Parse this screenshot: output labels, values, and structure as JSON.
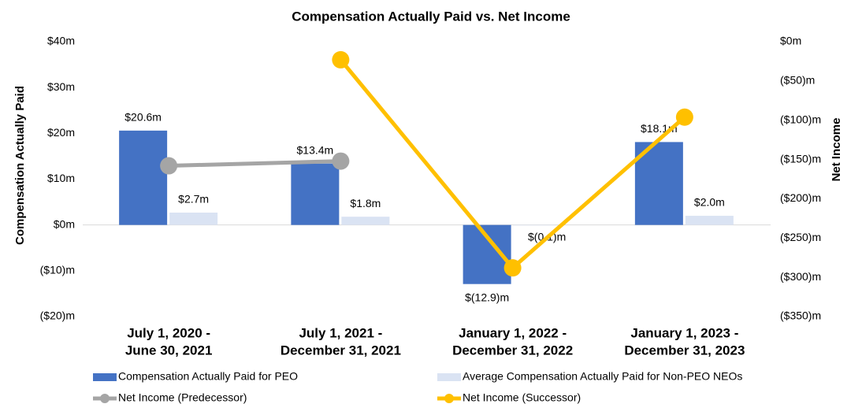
{
  "chart_data": {
    "type": "bar",
    "title": "Compensation Actually Paid vs. Net Income",
    "y_label": "Compensation Actually Paid",
    "y2_label": "Net Income",
    "categories": [
      [
        "July 1, 2020 -",
        "June 30, 2021"
      ],
      [
        "July 1, 2021 -",
        "December 31, 2021"
      ],
      [
        "January 1, 2022 -",
        "December 31, 2022"
      ],
      [
        "January 1, 2023 -",
        "December 31, 2023"
      ]
    ],
    "series": [
      {
        "name": "Compensation Actually Paid for PEO",
        "type": "bar",
        "color": "#4472c4",
        "values": [
          20.6,
          13.4,
          -12.9,
          18.1
        ],
        "value_labels": [
          "$20.6m",
          "$13.4m",
          "$(12.9)m",
          "$18.1m"
        ]
      },
      {
        "name": "Average Compensation Actually Paid for Non-PEO NEOs",
        "type": "bar",
        "color": "#dae3f3",
        "values": [
          2.7,
          1.8,
          -0.1,
          2.0
        ],
        "value_labels": [
          "$2.7m",
          "$1.8m",
          "$(0.1)m",
          "$2.0m"
        ]
      },
      {
        "name": "Net Income (Predecessor)",
        "type": "line",
        "axis": "y2",
        "color": "#a5a5a5",
        "values": [
          -158,
          -152,
          null,
          null
        ]
      },
      {
        "name": "Net Income (Successor)",
        "type": "line",
        "axis": "y2",
        "color": "#ffc000",
        "values": [
          null,
          -23,
          -288,
          -96
        ]
      }
    ],
    "ylim": [
      -20,
      40
    ],
    "yticks": [
      {
        "value": -20,
        "label": "($20)m"
      },
      {
        "value": -10,
        "label": "($10)m"
      },
      {
        "value": 0,
        "label": "$0m"
      },
      {
        "value": 10,
        "label": "$10m"
      },
      {
        "value": 20,
        "label": "$20m"
      },
      {
        "value": 30,
        "label": "$30m"
      },
      {
        "value": 40,
        "label": "$40m"
      }
    ],
    "y2lim": [
      -350,
      0
    ],
    "y2ticks": [
      {
        "value": -350,
        "label": "($350)m"
      },
      {
        "value": -300,
        "label": "($300)m"
      },
      {
        "value": -250,
        "label": "($250)m"
      },
      {
        "value": -200,
        "label": "($200)m"
      },
      {
        "value": -150,
        "label": "($150)m"
      },
      {
        "value": -100,
        "label": "($100)m"
      },
      {
        "value": -50,
        "label": "($50)m"
      },
      {
        "value": 0,
        "label": "$0m"
      }
    ],
    "legend": "bottom"
  }
}
